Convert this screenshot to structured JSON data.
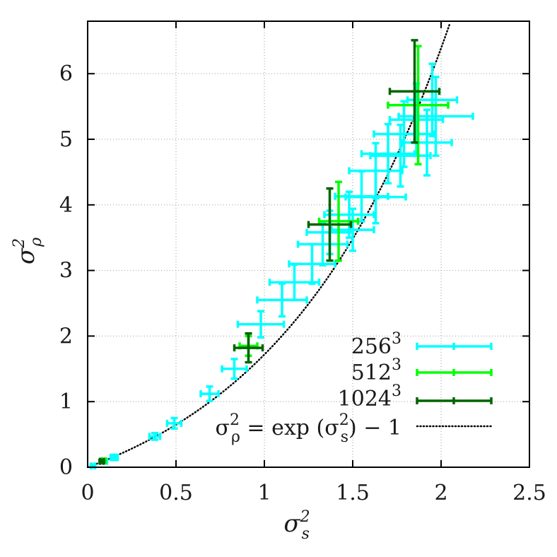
{
  "chart_data": {
    "type": "scatter",
    "title": "",
    "xlabel": "σ_s^2",
    "ylabel": "σ_ρ^2",
    "xlim": [
      0,
      2.5
    ],
    "ylim": [
      0,
      6.8
    ],
    "xticks": [
      0,
      0.5,
      1,
      1.5,
      2,
      2.5
    ],
    "xtick_labels": [
      "0",
      "0.5",
      "1",
      "1.5",
      "2",
      "2.5"
    ],
    "yticks": [
      0,
      1,
      2,
      3,
      4,
      5,
      6
    ],
    "ytick_labels": [
      "0",
      "1",
      "2",
      "3",
      "4",
      "5",
      "6"
    ],
    "grid": true,
    "legend_position": "bottom-right",
    "series": [
      {
        "name": "256^3",
        "color": "#00ffff",
        "points": [
          {
            "x": 0.03,
            "y": 0.02,
            "xerr": 0.01,
            "yerr": 0.02
          },
          {
            "x": 0.09,
            "y": 0.09,
            "xerr": 0.02,
            "yerr": 0.03
          },
          {
            "x": 0.15,
            "y": 0.15,
            "xerr": 0.02,
            "yerr": 0.04
          },
          {
            "x": 0.38,
            "y": 0.47,
            "xerr": 0.03,
            "yerr": 0.05
          },
          {
            "x": 0.49,
            "y": 0.67,
            "xerr": 0.04,
            "yerr": 0.08
          },
          {
            "x": 0.69,
            "y": 1.12,
            "xerr": 0.05,
            "yerr": 0.11
          },
          {
            "x": 0.83,
            "y": 1.5,
            "xerr": 0.07,
            "yerr": 0.15
          },
          {
            "x": 0.98,
            "y": 2.18,
            "xerr": 0.13,
            "yerr": 0.2
          },
          {
            "x": 1.1,
            "y": 2.55,
            "xerr": 0.14,
            "yerr": 0.25
          },
          {
            "x": 1.17,
            "y": 2.82,
            "xerr": 0.14,
            "yerr": 0.27
          },
          {
            "x": 1.27,
            "y": 3.1,
            "xerr": 0.13,
            "yerr": 0.3
          },
          {
            "x": 1.33,
            "y": 3.4,
            "xerr": 0.14,
            "yerr": 0.32
          },
          {
            "x": 1.37,
            "y": 3.58,
            "xerr": 0.13,
            "yerr": 0.33
          },
          {
            "x": 1.5,
            "y": 3.62,
            "xerr": 0.12,
            "yerr": 0.32
          },
          {
            "x": 1.48,
            "y": 3.85,
            "xerr": 0.14,
            "yerr": 0.35
          },
          {
            "x": 1.55,
            "y": 4.13,
            "xerr": 0.15,
            "yerr": 0.38
          },
          {
            "x": 1.63,
            "y": 4.12,
            "xerr": 0.17,
            "yerr": 0.4
          },
          {
            "x": 1.63,
            "y": 4.52,
            "xerr": 0.15,
            "yerr": 0.42
          },
          {
            "x": 1.7,
            "y": 4.78,
            "xerr": 0.15,
            "yerr": 0.45
          },
          {
            "x": 1.77,
            "y": 4.75,
            "xerr": 0.17,
            "yerr": 0.47
          },
          {
            "x": 1.79,
            "y": 5.08,
            "xerr": 0.17,
            "yerr": 0.5
          },
          {
            "x": 1.86,
            "y": 5.3,
            "xerr": 0.15,
            "yerr": 0.55
          },
          {
            "x": 1.92,
            "y": 4.95,
            "xerr": 0.14,
            "yerr": 0.5
          },
          {
            "x": 1.97,
            "y": 5.35,
            "xerr": 0.21,
            "yerr": 0.6
          },
          {
            "x": 1.95,
            "y": 5.6,
            "xerr": 0.14,
            "yerr": 0.55
          }
        ]
      },
      {
        "name": "512^3",
        "color": "#00ff00",
        "points": [
          {
            "x": 0.09,
            "y": 0.1,
            "xerr": 0.01,
            "yerr": 0.02
          },
          {
            "x": 0.91,
            "y": 1.85,
            "xerr": 0.05,
            "yerr": 0.15
          },
          {
            "x": 1.42,
            "y": 3.75,
            "xerr": 0.11,
            "yerr": 0.6
          },
          {
            "x": 1.87,
            "y": 5.52,
            "xerr": 0.17,
            "yerr": 0.9
          }
        ]
      },
      {
        "name": "1024^3",
        "color": "#006400",
        "points": [
          {
            "x": 0.08,
            "y": 0.09,
            "xerr": 0.01,
            "yerr": 0.02
          },
          {
            "x": 0.91,
            "y": 1.82,
            "xerr": 0.08,
            "yerr": 0.22
          },
          {
            "x": 1.37,
            "y": 3.7,
            "xerr": 0.12,
            "yerr": 0.55
          },
          {
            "x": 1.85,
            "y": 5.73,
            "xerr": 0.14,
            "yerr": 0.78
          }
        ]
      }
    ],
    "model_curve": {
      "label": "σ_ρ^2 = exp(σ_s^2) − 1",
      "color": "#000000",
      "style": "dotted"
    }
  },
  "legend": {
    "entries": [
      {
        "base": "256",
        "sup": "3",
        "color": "#00ffff",
        "kind": "errorbar"
      },
      {
        "base": "512",
        "sup": "3",
        "color": "#00ff00",
        "kind": "errorbar"
      },
      {
        "base": "1024",
        "sup": "3",
        "color": "#006400",
        "kind": "errorbar"
      },
      {
        "kind": "dotted",
        "color": "#000000"
      }
    ]
  }
}
